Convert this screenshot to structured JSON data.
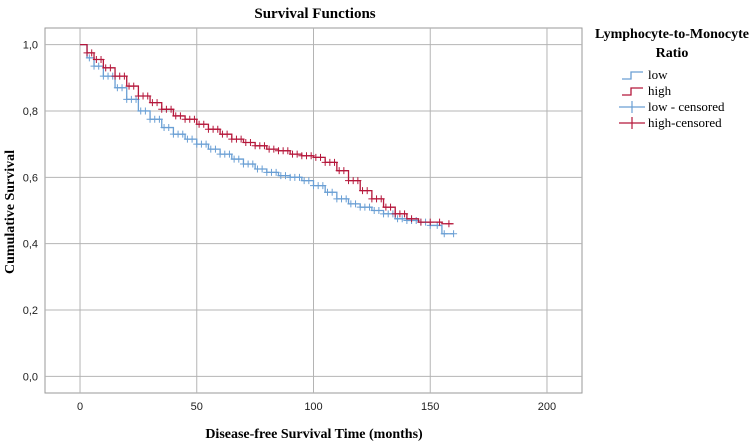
{
  "chart_data": {
    "type": "line",
    "title": "Survival Functions",
    "xlabel": "Disease-free Survival Time (months)",
    "ylabel": "Cumulative Survival",
    "xlim": [
      -15,
      215
    ],
    "ylim": [
      -0.05,
      1.05
    ],
    "x_ticks": [
      0,
      50,
      100,
      150,
      200
    ],
    "x_tick_labels": [
      "0",
      "50",
      "100",
      "150",
      "200"
    ],
    "y_ticks": [
      0.0,
      0.2,
      0.4,
      0.6,
      0.8,
      1.0
    ],
    "y_tick_labels": [
      "0,0",
      "0,2",
      "0,4",
      "0,6",
      "0,8",
      "1,0"
    ],
    "grid": true,
    "legend": {
      "title_lines": [
        "Lymphocyte-to-Monocyte",
        "Ratio"
      ],
      "placement": "right",
      "entries": [
        "low",
        "high",
        "low - censored",
        "high-censored"
      ]
    },
    "series": [
      {
        "name": "low",
        "color": "#6a9fd4",
        "censored_label": "low - censored",
        "x": [
          0,
          3,
          6,
          10,
          15,
          20,
          25,
          30,
          35,
          40,
          45,
          50,
          55,
          60,
          65,
          70,
          75,
          80,
          85,
          90,
          95,
          100,
          105,
          110,
          115,
          120,
          125,
          130,
          135,
          140,
          145,
          150,
          155,
          160
        ],
        "y": [
          1.0,
          0.96,
          0.935,
          0.905,
          0.87,
          0.835,
          0.8,
          0.775,
          0.75,
          0.73,
          0.715,
          0.7,
          0.685,
          0.67,
          0.655,
          0.64,
          0.625,
          0.615,
          0.605,
          0.6,
          0.59,
          0.575,
          0.555,
          0.535,
          0.52,
          0.51,
          0.5,
          0.49,
          0.475,
          0.47,
          0.465,
          0.455,
          0.43,
          0.43
        ],
        "censored_x": [
          4,
          6,
          8,
          10,
          12,
          14,
          16,
          18,
          20,
          22,
          24,
          26,
          28,
          30,
          32,
          34,
          36,
          38,
          40,
          42,
          44,
          46,
          48,
          50,
          52,
          54,
          56,
          58,
          60,
          62,
          64,
          66,
          68,
          70,
          72,
          74,
          76,
          78,
          80,
          82,
          84,
          86,
          88,
          90,
          92,
          94,
          96,
          98,
          100,
          102,
          104,
          106,
          108,
          110,
          112,
          114,
          116,
          118,
          120,
          122,
          124,
          126,
          128,
          130,
          132,
          134,
          136,
          138,
          140,
          142,
          144,
          146,
          148,
          150,
          153,
          156,
          160
        ]
      },
      {
        "name": "high",
        "color": "#b5173b",
        "censored_label": "high-censored",
        "x": [
          0,
          3,
          6,
          10,
          15,
          20,
          25,
          30,
          35,
          40,
          45,
          50,
          55,
          60,
          65,
          70,
          75,
          80,
          85,
          90,
          95,
          100,
          105,
          110,
          115,
          120,
          125,
          130,
          135,
          140,
          145,
          150,
          155,
          160
        ],
        "y": [
          1.0,
          0.975,
          0.955,
          0.93,
          0.905,
          0.875,
          0.845,
          0.825,
          0.805,
          0.785,
          0.775,
          0.76,
          0.745,
          0.73,
          0.715,
          0.705,
          0.695,
          0.685,
          0.68,
          0.67,
          0.665,
          0.66,
          0.645,
          0.62,
          0.59,
          0.56,
          0.535,
          0.51,
          0.49,
          0.475,
          0.465,
          0.465,
          0.46,
          0.46
        ],
        "censored_x": [
          3,
          5,
          7,
          9,
          11,
          13,
          15,
          17,
          19,
          21,
          23,
          25,
          27,
          29,
          31,
          33,
          35,
          37,
          39,
          41,
          43,
          45,
          47,
          49,
          51,
          53,
          55,
          57,
          59,
          61,
          63,
          65,
          67,
          69,
          71,
          73,
          75,
          77,
          79,
          81,
          83,
          85,
          87,
          89,
          91,
          93,
          95,
          97,
          99,
          101,
          103,
          105,
          107,
          109,
          111,
          113,
          115,
          117,
          119,
          121,
          123,
          125,
          127,
          129,
          131,
          133,
          135,
          137,
          139,
          142,
          146,
          150,
          154,
          158
        ]
      }
    ]
  }
}
